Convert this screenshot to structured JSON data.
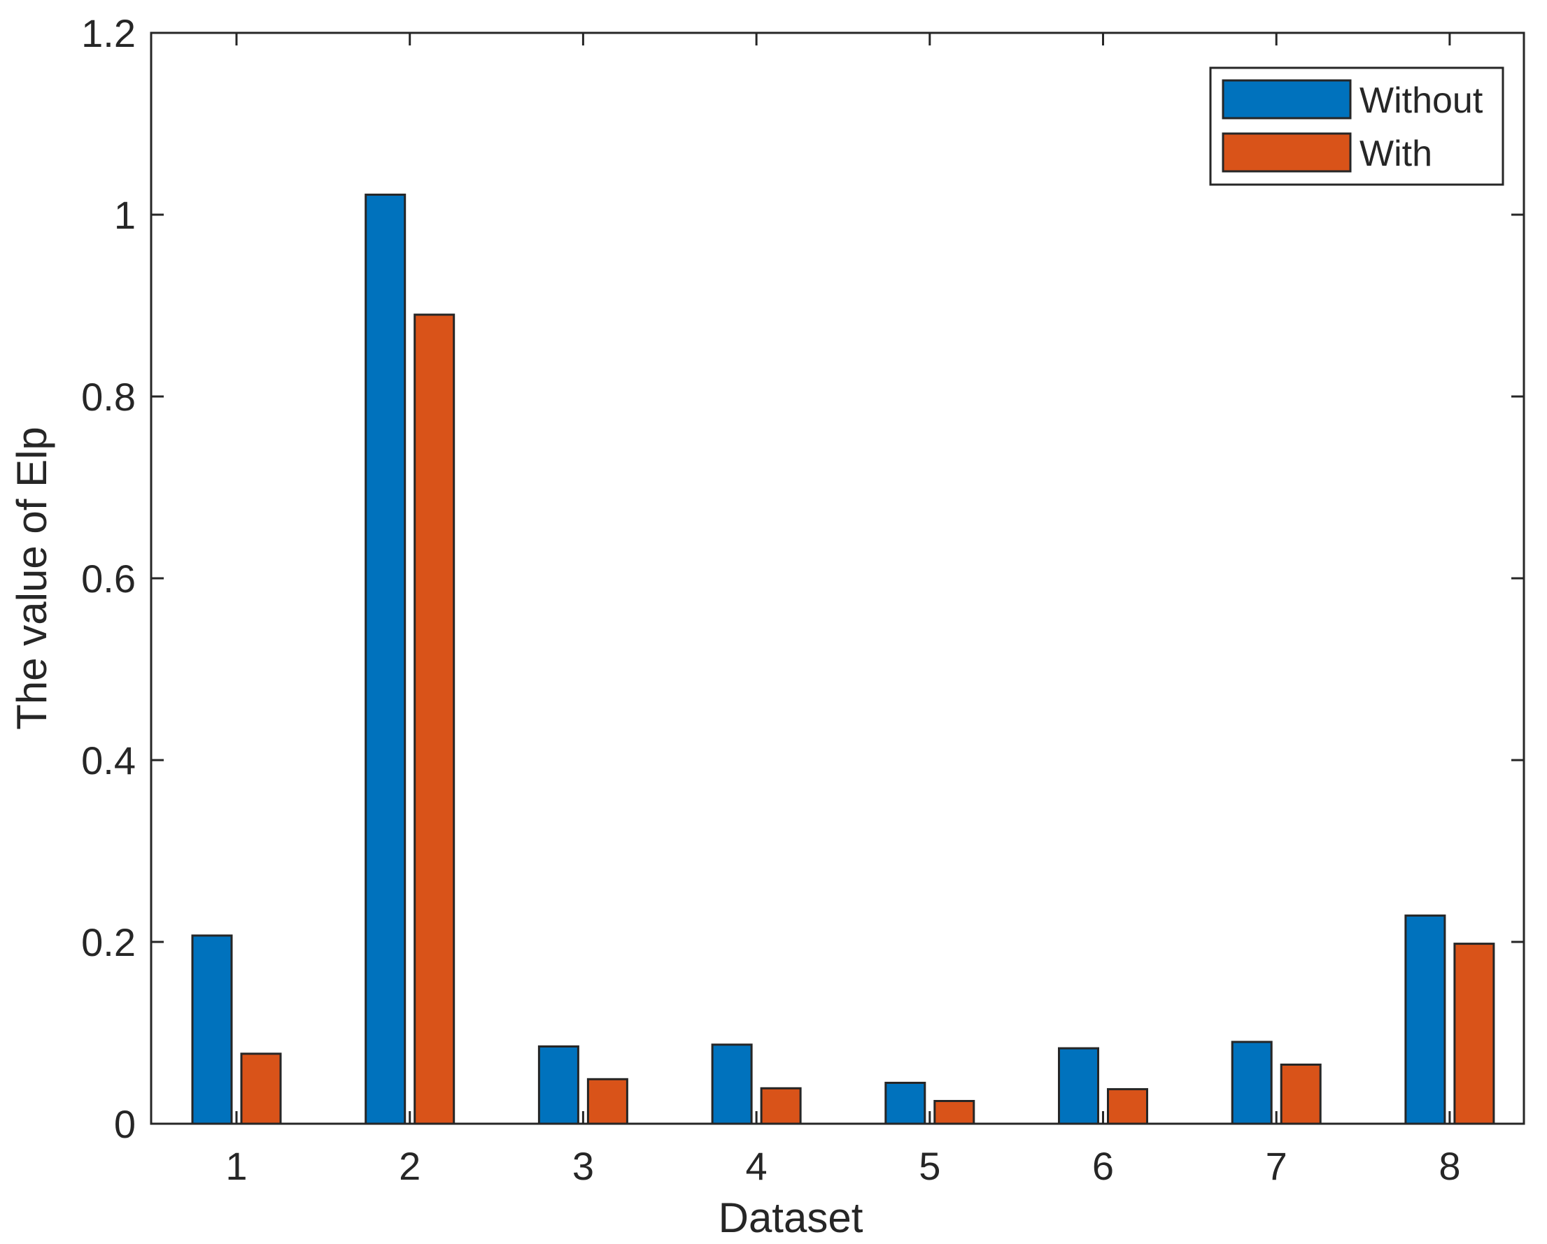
{
  "chart_data": {
    "type": "bar",
    "title": "",
    "xlabel": "Dataset",
    "ylabel": "The value of Elp",
    "categories": [
      "1",
      "2",
      "3",
      "4",
      "5",
      "6",
      "7",
      "8"
    ],
    "series": [
      {
        "name": "Without",
        "color": "#0072BD",
        "values": [
          0.207,
          1.022,
          0.085,
          0.087,
          0.045,
          0.083,
          0.09,
          0.229
        ]
      },
      {
        "name": "With",
        "color": "#D95319",
        "values": [
          0.077,
          0.89,
          0.049,
          0.039,
          0.025,
          0.038,
          0.065,
          0.198
        ]
      }
    ],
    "ylim": [
      0,
      1.2
    ],
    "yticks": [
      "0",
      "0.2",
      "0.4",
      "0.6",
      "0.8",
      "1",
      "1.2"
    ],
    "grid": false,
    "legend_position": "top-right"
  }
}
